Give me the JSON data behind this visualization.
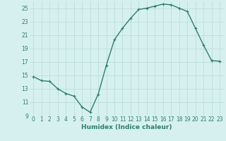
{
  "x": [
    0,
    1,
    2,
    3,
    4,
    5,
    6,
    7,
    8,
    9,
    10,
    11,
    12,
    13,
    14,
    15,
    16,
    17,
    18,
    19,
    20,
    21,
    22,
    23
  ],
  "y": [
    14.8,
    14.2,
    14.1,
    13.0,
    12.3,
    11.9,
    10.3,
    9.5,
    12.2,
    16.5,
    20.3,
    22.0,
    23.5,
    24.8,
    25.0,
    25.3,
    25.6,
    25.5,
    25.0,
    24.5,
    22.0,
    19.5,
    17.2,
    17.1
  ],
  "line_color": "#2e7d6e",
  "marker": "+",
  "marker_size": 3,
  "bg_color": "#d6f0f0",
  "grid_color": "#b8d8d8",
  "xlabel": "Humidex (Indice chaleur)",
  "ylim": [
    9,
    26
  ],
  "xlim": [
    -0.5,
    23.5
  ],
  "yticks": [
    9,
    11,
    13,
    15,
    17,
    19,
    21,
    23,
    25
  ],
  "xticks": [
    0,
    1,
    2,
    3,
    4,
    5,
    6,
    7,
    8,
    9,
    10,
    11,
    12,
    13,
    14,
    15,
    16,
    17,
    18,
    19,
    20,
    21,
    22,
    23
  ],
  "xlabel_fontsize": 6.5,
  "tick_fontsize": 5.5,
  "line_width": 1.0,
  "marker_edge_width": 0.8
}
